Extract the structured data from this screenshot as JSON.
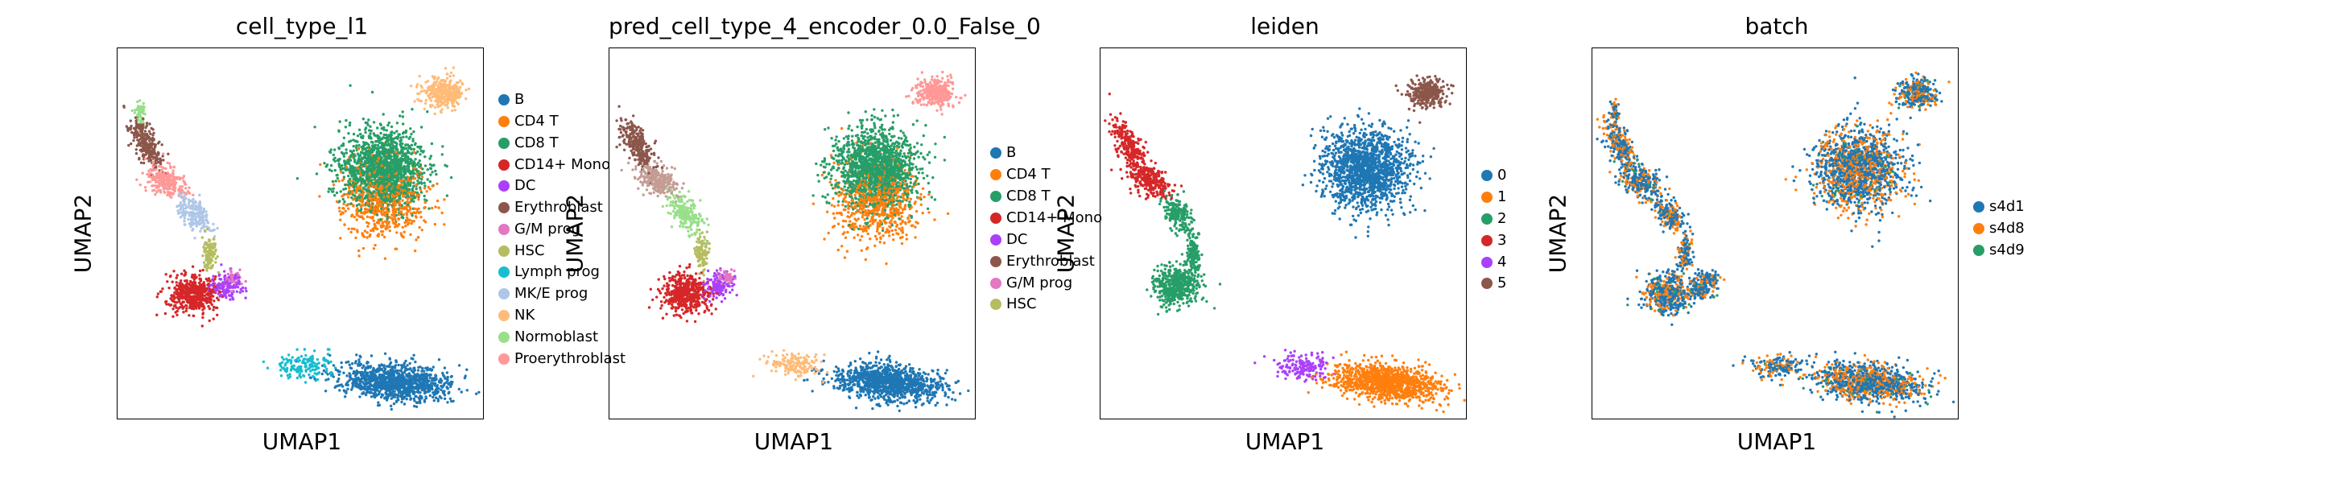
{
  "chart_data": [
    {
      "type": "scatter",
      "title": "cell_type_l1",
      "xlabel": "UMAP1",
      "ylabel": "UMAP2",
      "grid": false,
      "legend_placement": "right",
      "categories": [
        {
          "name": "B",
          "color": "#1f77b4"
        },
        {
          "name": "CD4 T",
          "color": "#ff7f0e"
        },
        {
          "name": "CD8 T",
          "color": "#279e68"
        },
        {
          "name": "CD14+ Mono",
          "color": "#d62728"
        },
        {
          "name": "DC",
          "color": "#aa40fc"
        },
        {
          "name": "Erythroblast",
          "color": "#8c564b"
        },
        {
          "name": "G/M prog",
          "color": "#e377c2"
        },
        {
          "name": "HSC",
          "color": "#b5bd61"
        },
        {
          "name": "Lymph prog",
          "color": "#17becf"
        },
        {
          "name": "MK/E prog",
          "color": "#aec7e8"
        },
        {
          "name": "NK",
          "color": "#ffbb78"
        },
        {
          "name": "Normoblast",
          "color": "#98df8a"
        },
        {
          "name": "Proerythroblast",
          "color": "#ff9896"
        }
      ]
    },
    {
      "type": "scatter",
      "title": "pred_cell_type_4_encoder_0.0_False_0",
      "xlabel": "UMAP1",
      "ylabel": "UMAP2",
      "grid": false,
      "legend_placement": "right",
      "categories": [
        {
          "name": "B",
          "color": "#1f77b4"
        },
        {
          "name": "CD4 T",
          "color": "#ff7f0e"
        },
        {
          "name": "CD8 T",
          "color": "#279e68"
        },
        {
          "name": "CD14+ Mono",
          "color": "#d62728"
        },
        {
          "name": "DC",
          "color": "#aa40fc"
        },
        {
          "name": "Erythroblast",
          "color": "#8c564b"
        },
        {
          "name": "G/M prog",
          "color": "#e377c2"
        },
        {
          "name": "HSC",
          "color": "#b5bd61"
        }
      ]
    },
    {
      "type": "scatter",
      "title": "leiden",
      "xlabel": "UMAP1",
      "ylabel": "UMAP2",
      "grid": false,
      "legend_placement": "right",
      "categories": [
        {
          "name": "0",
          "color": "#1f77b4"
        },
        {
          "name": "1",
          "color": "#ff7f0e"
        },
        {
          "name": "2",
          "color": "#279e68"
        },
        {
          "name": "3",
          "color": "#d62728"
        },
        {
          "name": "4",
          "color": "#aa40fc"
        },
        {
          "name": "5",
          "color": "#8c564b"
        }
      ]
    },
    {
      "type": "scatter",
      "title": "batch",
      "xlabel": "UMAP1",
      "ylabel": "UMAP2",
      "grid": false,
      "legend_placement": "right",
      "categories": [
        {
          "name": "s4d1",
          "color": "#1f77b4"
        },
        {
          "name": "s4d8",
          "color": "#ff7f0e"
        },
        {
          "name": "s4d9",
          "color": "#279e68"
        }
      ]
    }
  ]
}
